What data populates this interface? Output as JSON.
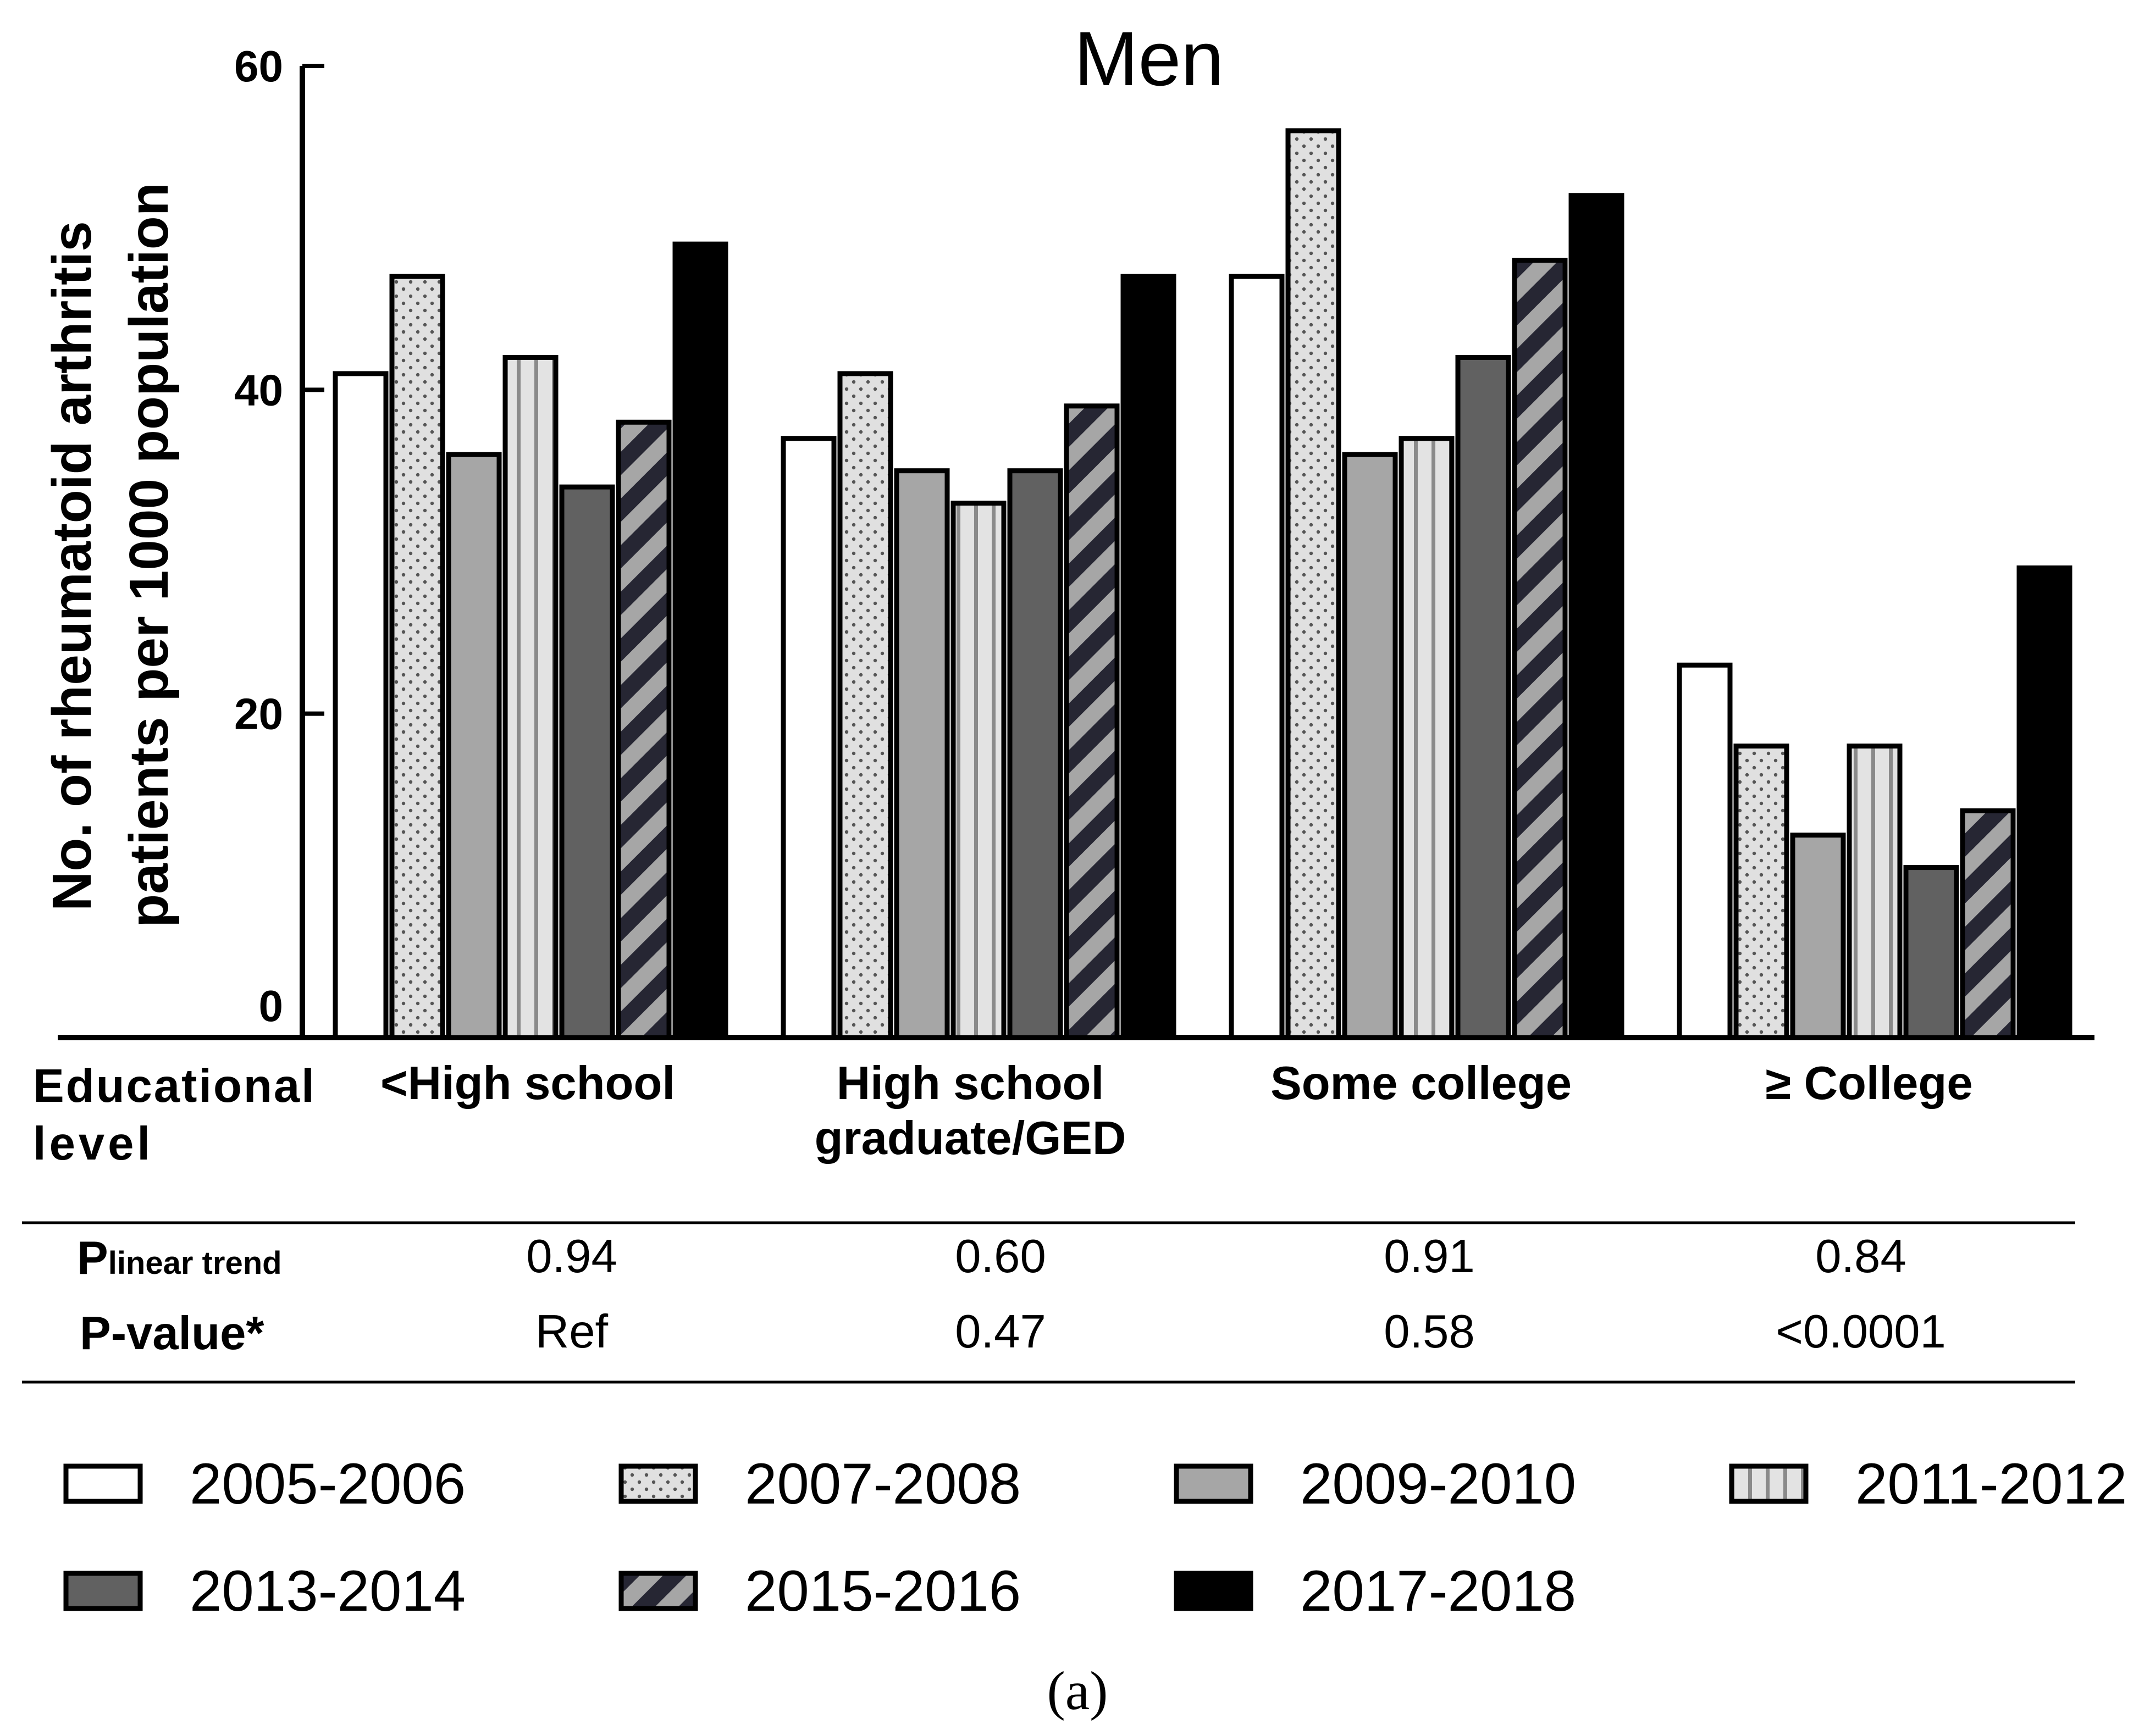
{
  "chart_data": {
    "type": "bar",
    "title": "Men",
    "ylabel_line1": "No. of rheumatoid arthritis",
    "ylabel_line2": "patients per 1000 population",
    "ylim": [
      0,
      60
    ],
    "yticks": [
      0,
      20,
      40,
      60
    ],
    "xaxis_label_line1": "Educational",
    "xaxis_label_line2": "level",
    "categories": [
      [
        "<High school"
      ],
      [
        "High school",
        "graduate/GED"
      ],
      [
        "Some college"
      ],
      [
        "≥ College"
      ]
    ],
    "series": [
      {
        "name": "2005-2006",
        "values": [
          41,
          37,
          47,
          23
        ],
        "pattern": "white"
      },
      {
        "name": "2007-2008",
        "values": [
          47,
          41,
          56,
          18
        ],
        "pattern": "dots"
      },
      {
        "name": "2009-2010",
        "values": [
          36,
          35,
          36,
          12.5
        ],
        "pattern": "midgray"
      },
      {
        "name": "2011-2012",
        "values": [
          42,
          33,
          37,
          18
        ],
        "pattern": "vstripes"
      },
      {
        "name": "2013-2014",
        "values": [
          34,
          35,
          42,
          10.5
        ],
        "pattern": "darkgray"
      },
      {
        "name": "2015-2016",
        "values": [
          38,
          39,
          48,
          14
        ],
        "pattern": "diagonal"
      },
      {
        "name": "2017-2018",
        "values": [
          49,
          47,
          52,
          29
        ],
        "pattern": "black"
      }
    ],
    "grid": false,
    "legend_position": "bottom",
    "colors": {
      "white": "#ffffff",
      "dots_bg": "#e0e0e0",
      "midgray": "#a6a6a6",
      "stripes_light": "#e3e3e3",
      "stripes_dark": "#8a8a8a",
      "darkgray": "#616161",
      "diag_light": "#a6a6a6",
      "diag_dark": "#262633",
      "black": "#000000"
    }
  },
  "table": {
    "row1_label_main": "P",
    "row1_label_sub": "linear trend",
    "row1_values": [
      "0.94",
      "0.60",
      "0.91",
      "0.84"
    ],
    "row2_label": "P-value*",
    "row2_values": [
      "Ref",
      "0.47",
      "0.58",
      "<0.0001"
    ]
  },
  "panel_label": "(a)"
}
